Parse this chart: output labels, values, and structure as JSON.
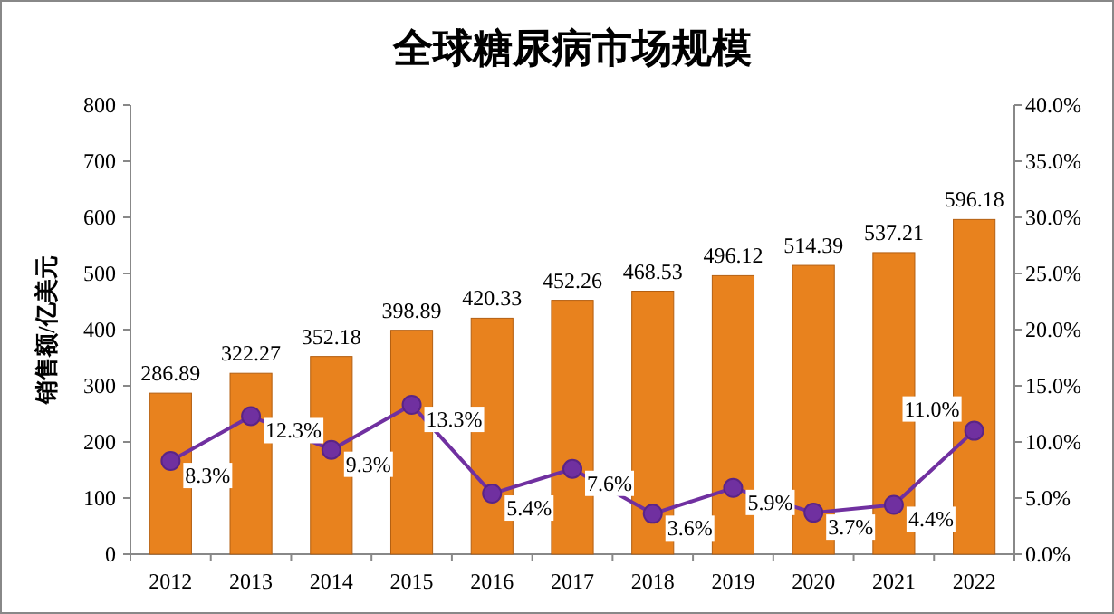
{
  "chart_data": {
    "type": "bar",
    "title": "全球糖尿病市场规模",
    "ylabel": "销售额/亿美元",
    "categories": [
      "2012",
      "2013",
      "2014",
      "2015",
      "2016",
      "2017",
      "2018",
      "2019",
      "2020",
      "2021",
      "2022"
    ],
    "series": [
      {
        "color": "#e8821e",
        "values": [
          286.89,
          322.27,
          352.18,
          398.89,
          420.33,
          452.26,
          468.53,
          496.12,
          514.39,
          537.21,
          596.18
        ],
        "value_labels": [
          "286.89",
          "322.27",
          "352.18",
          "398.89",
          "420.33",
          "452.26",
          "468.53",
          "496.12",
          "514.39",
          "537.21",
          "596.18"
        ]
      },
      {
        "type": "line",
        "axis": "y2",
        "color": "#7030a0",
        "marker": "circle",
        "values": [
          8.3,
          12.3,
          9.3,
          13.3,
          5.4,
          7.6,
          3.6,
          5.9,
          3.7,
          4.4,
          11.0
        ],
        "value_labels": [
          "8.3%",
          "12.3%",
          "9.3%",
          "13.3%",
          "5.4%",
          "7.6%",
          "3.6%",
          "5.9%",
          "3.7%",
          "4.4%",
          "11.0%"
        ]
      }
    ],
    "ylim": [
      0,
      800
    ],
    "yticks": [
      0,
      100,
      200,
      300,
      400,
      500,
      600,
      700,
      800
    ],
    "y2lim": [
      0,
      40
    ],
    "y2ticks": [
      {
        "value": 0,
        "label": "0.0%"
      },
      {
        "value": 5,
        "label": "5.0%"
      },
      {
        "value": 10,
        "label": "10.0%"
      },
      {
        "value": 15,
        "label": "15.0%"
      },
      {
        "value": 20,
        "label": "20.0%"
      },
      {
        "value": 25,
        "label": "25.0%"
      },
      {
        "value": 30,
        "label": "30.0%"
      },
      {
        "value": 35,
        "label": "35.0%"
      },
      {
        "value": 40,
        "label": "40.0%"
      }
    ],
    "grid": false
  }
}
